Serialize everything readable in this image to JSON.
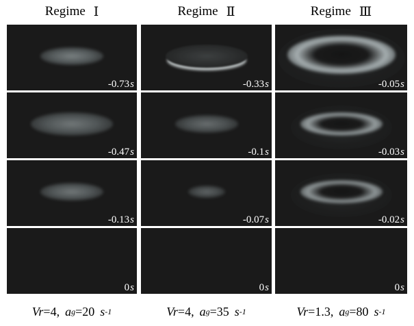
{
  "columns": [
    {
      "header": {
        "label": "Regime",
        "roman": "Ⅰ"
      },
      "footer": {
        "vr_label": "Vr",
        "vr_value": "=4,",
        "a_label": "a",
        "a_sub": "g",
        "a_value": "=20",
        "unit_base": "s",
        "unit_exp": "-1"
      },
      "panels": [
        {
          "time": "-0.73",
          "unit": "s",
          "shape": "disk",
          "size": "medium",
          "brightness": 0.55
        },
        {
          "time": "-0.47",
          "unit": "s",
          "shape": "disk",
          "size": "large",
          "brightness": 0.5
        },
        {
          "time": "-0.13",
          "unit": "s",
          "shape": "disk",
          "size": "medium",
          "brightness": 0.5
        },
        {
          "time": "0",
          "unit": "s",
          "shape": "none",
          "size": "none",
          "brightness": 0
        }
      ]
    },
    {
      "header": {
        "label": "Regime",
        "roman": "Ⅱ"
      },
      "footer": {
        "vr_label": "Vr",
        "vr_value": "=4,",
        "a_label": "a",
        "a_sub": "g",
        "a_value": "=35",
        "unit_base": "s",
        "unit_exp": "-1"
      },
      "panels": [
        {
          "time": "-0.33",
          "unit": "s",
          "shape": "arc",
          "size": "large",
          "brightness": 0.8
        },
        {
          "time": "-0.1",
          "unit": "s",
          "shape": "disk",
          "size": "medium",
          "brightness": 0.45
        },
        {
          "time": "-0.07",
          "unit": "s",
          "shape": "disk",
          "size": "small",
          "brightness": 0.4
        },
        {
          "time": "0",
          "unit": "s",
          "shape": "none",
          "size": "none",
          "brightness": 0
        }
      ]
    },
    {
      "header": {
        "label": "Regime",
        "roman": "Ⅲ"
      },
      "footer": {
        "vr_label": "Vr",
        "vr_value": "=1.3,",
        "a_label": "a",
        "a_sub": "g",
        "a_value": "=80",
        "unit_base": "s",
        "unit_exp": "-1"
      },
      "panels": [
        {
          "time": "-0.05",
          "unit": "s",
          "shape": "ring",
          "size": "xlarge",
          "brightness": 0.85
        },
        {
          "time": "-0.03",
          "unit": "s",
          "shape": "ring",
          "size": "large",
          "brightness": 0.75
        },
        {
          "time": "-0.02",
          "unit": "s",
          "shape": "ring",
          "size": "large",
          "brightness": 0.7
        },
        {
          "time": "0",
          "unit": "s",
          "shape": "none",
          "size": "none",
          "brightness": 0
        }
      ]
    }
  ],
  "colors": {
    "background": "#ffffff",
    "panel": "#1a1a1a",
    "glow": "#c8d2d4",
    "label": "#ffffff"
  }
}
